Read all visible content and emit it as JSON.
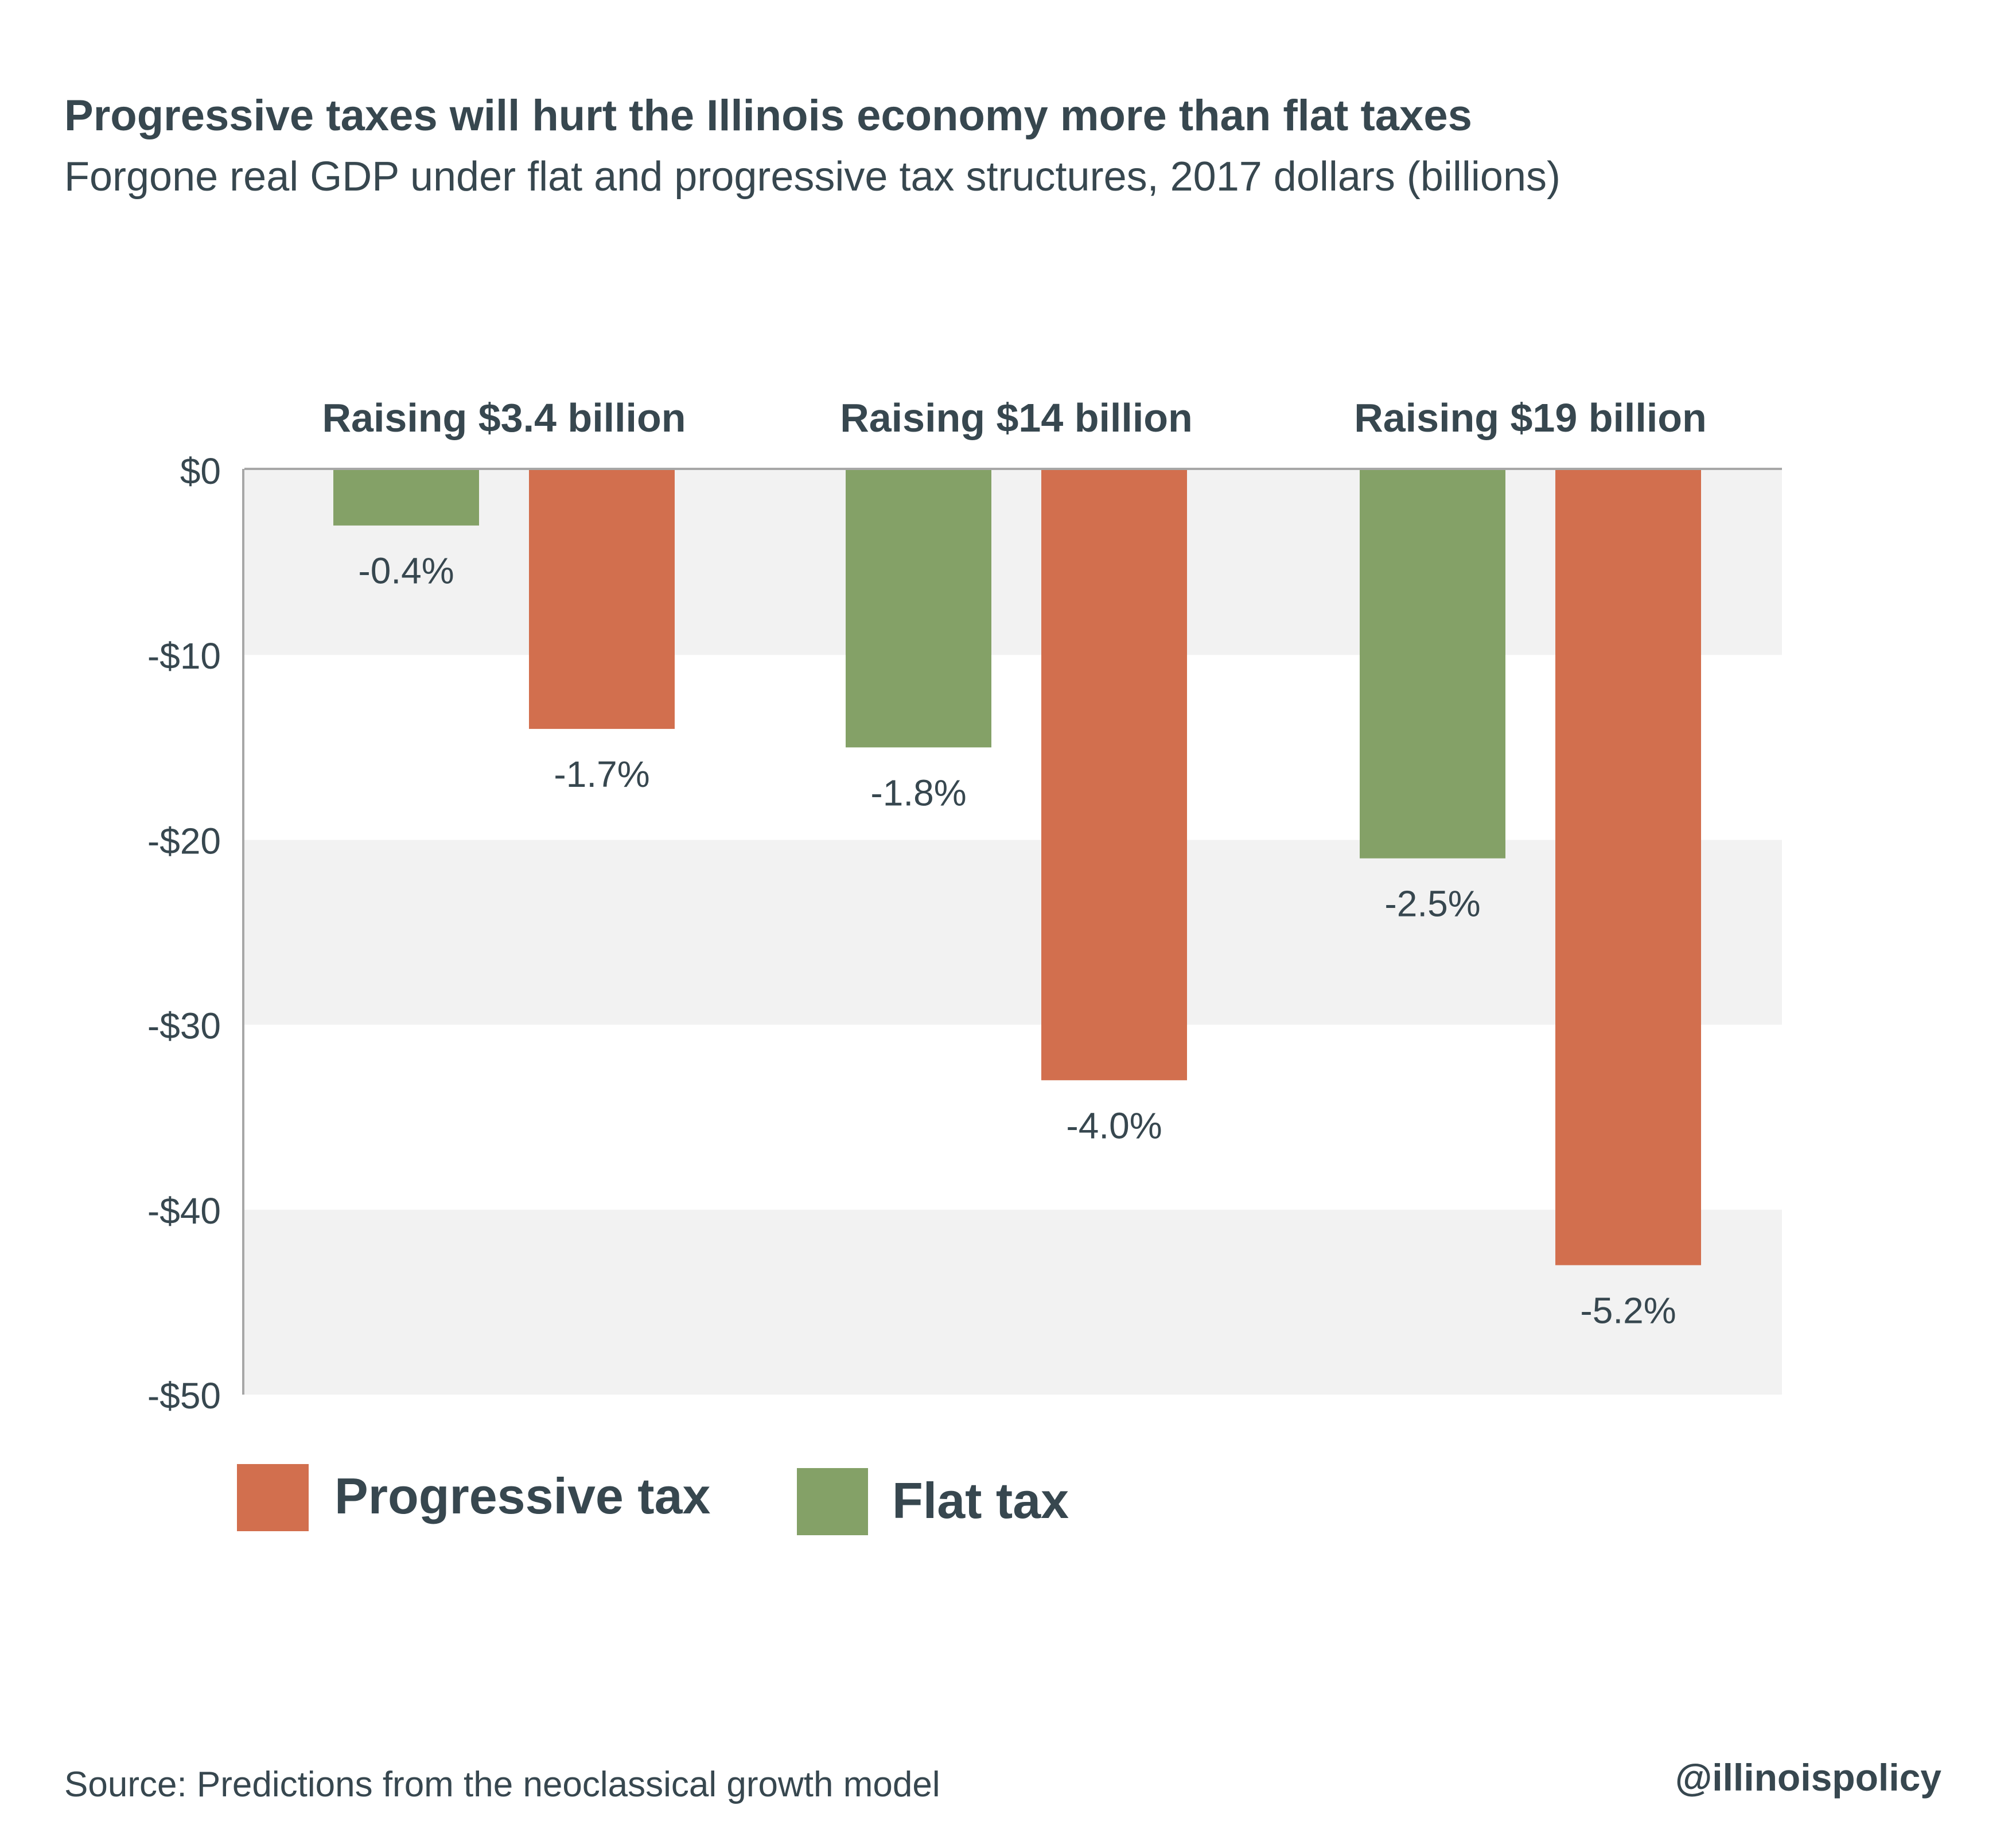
{
  "chart_data": {
    "type": "bar",
    "title": "Progressive taxes will hurt the Illinois economy more than flat taxes",
    "subtitle": "Forgone real GDP under flat and progressive tax structures, 2017 dollars (billions)",
    "categories": [
      "Raising $3.4 billion",
      "Raising $14 billion",
      "Raising $19 billion"
    ],
    "series": [
      {
        "name": "Flat tax",
        "color": "#84A167",
        "values": [
          -3,
          -15,
          -21
        ],
        "labels": [
          "-0.4%",
          "-1.8%",
          "-2.5%"
        ]
      },
      {
        "name": "Progressive tax",
        "color": "#D26F4E",
        "values": [
          -14,
          -33,
          -43
        ],
        "labels": [
          "-1.7%",
          "-4.0%",
          "-5.2%"
        ]
      }
    ],
    "yticks": [
      0,
      -10,
      -20,
      -30,
      -40,
      -50
    ],
    "ytick_labels": [
      "$0",
      "-$10",
      "-$20",
      "-$30",
      "-$40",
      "-$50"
    ],
    "ylim": [
      -50,
      0
    ],
    "grid": "alternating horizontal bands",
    "legend_placement": "bottom-left",
    "legend": [
      "Progressive tax",
      "Flat tax"
    ],
    "source": "Source: Predictions from the neoclassical growth model",
    "handle": "@illinoispolicy"
  }
}
